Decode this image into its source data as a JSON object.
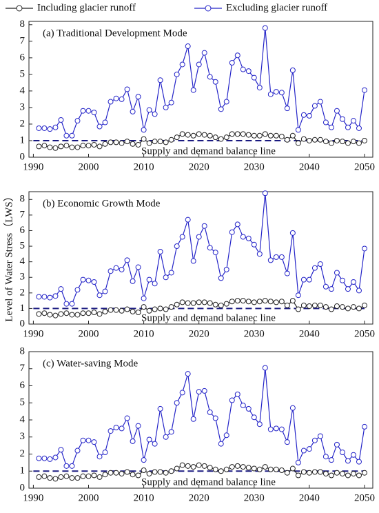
{
  "legend": [
    "Including glacier runoff",
    "Excluding glacier runoff"
  ],
  "y_label": "Level of Water Stress（LWS）",
  "chart_data": [
    {
      "type": "line",
      "title": "(a) Traditional Development Mode",
      "annotation": "Supply and demand balance line",
      "reference_line": 1,
      "x": [
        1991,
        1992,
        1993,
        1994,
        1995,
        1996,
        1997,
        1998,
        1999,
        2000,
        2001,
        2002,
        2003,
        2004,
        2005,
        2006,
        2007,
        2008,
        2009,
        2010,
        2011,
        2012,
        2013,
        2014,
        2015,
        2016,
        2017,
        2018,
        2019,
        2020,
        2021,
        2022,
        2023,
        2024,
        2025,
        2026,
        2027,
        2028,
        2029,
        2030,
        2031,
        2032,
        2033,
        2034,
        2035,
        2036,
        2037,
        2038,
        2039,
        2040,
        2041,
        2042,
        2043,
        2044,
        2045,
        2046,
        2047,
        2048,
        2049,
        2050
      ],
      "xlim": [
        1989.2,
        2051.5
      ],
      "xticks": [
        1990,
        2000,
        2010,
        2020,
        2030,
        2040,
        2050
      ],
      "ylim": [
        0,
        8.2
      ],
      "yticks": [
        0,
        1,
        2,
        3,
        4,
        5,
        6,
        7,
        8
      ],
      "series": [
        {
          "name": "Including glacier runoff",
          "color": "#222222",
          "values": [
            0.65,
            0.7,
            0.6,
            0.55,
            0.65,
            0.7,
            0.6,
            0.6,
            0.7,
            0.7,
            0.75,
            0.65,
            0.8,
            0.9,
            0.9,
            0.85,
            0.95,
            0.8,
            0.75,
            1.1,
            0.85,
            0.95,
            0.95,
            0.9,
            1.05,
            1.2,
            1.4,
            1.35,
            1.3,
            1.4,
            1.35,
            1.3,
            1.2,
            1.1,
            1.2,
            1.4,
            1.4,
            1.4,
            1.35,
            1.3,
            1.3,
            1.4,
            1.3,
            1.3,
            1.25,
            1.05,
            1.3,
            0.85,
            1.1,
            1.0,
            1.05,
            1.05,
            0.95,
            0.85,
            1.0,
            0.95,
            0.85,
            0.95,
            0.85,
            1.0
          ]
        },
        {
          "name": "Excluding glacier runoff",
          "color": "#2424c8",
          "values": [
            1.75,
            1.75,
            1.7,
            1.8,
            2.25,
            1.3,
            1.3,
            2.2,
            2.8,
            2.8,
            2.7,
            1.85,
            2.1,
            3.35,
            3.55,
            3.5,
            4.1,
            2.75,
            3.65,
            1.65,
            2.85,
            2.6,
            4.65,
            3.0,
            3.3,
            5.0,
            5.6,
            6.7,
            4.05,
            5.6,
            6.3,
            4.85,
            4.55,
            2.9,
            3.35,
            5.7,
            6.15,
            5.3,
            5.2,
            4.8,
            4.2,
            7.8,
            3.8,
            3.95,
            3.9,
            2.95,
            5.25,
            1.65,
            2.55,
            2.5,
            3.1,
            3.35,
            2.1,
            1.8,
            2.8,
            2.3,
            1.8,
            2.2,
            1.75,
            4.05
          ]
        }
      ]
    },
    {
      "type": "line",
      "title": "(b)  Economic Growth Mode",
      "annotation": "Supply and demand balanec line",
      "reference_line": 1,
      "x": [
        1991,
        1992,
        1993,
        1994,
        1995,
        1996,
        1997,
        1998,
        1999,
        2000,
        2001,
        2002,
        2003,
        2004,
        2005,
        2006,
        2007,
        2008,
        2009,
        2010,
        2011,
        2012,
        2013,
        2014,
        2015,
        2016,
        2017,
        2018,
        2019,
        2020,
        2021,
        2022,
        2023,
        2024,
        2025,
        2026,
        2027,
        2028,
        2029,
        2030,
        2031,
        2032,
        2033,
        2034,
        2035,
        2036,
        2037,
        2038,
        2039,
        2040,
        2041,
        2042,
        2043,
        2044,
        2045,
        2046,
        2047,
        2048,
        2049,
        2050
      ],
      "xlim": [
        1989.2,
        2051.5
      ],
      "xticks": [
        1990,
        2000,
        2010,
        2020,
        2030,
        2040,
        2050
      ],
      "ylim": [
        0,
        8.5
      ],
      "yticks": [
        0,
        1,
        2,
        3,
        4,
        5,
        6,
        7,
        8
      ],
      "series": [
        {
          "color": "#222222",
          "values": [
            0.65,
            0.7,
            0.6,
            0.55,
            0.65,
            0.7,
            0.6,
            0.6,
            0.7,
            0.7,
            0.75,
            0.65,
            0.8,
            0.9,
            0.9,
            0.85,
            0.95,
            0.8,
            0.75,
            1.1,
            0.85,
            0.95,
            1.0,
            0.95,
            1.1,
            1.25,
            1.4,
            1.35,
            1.35,
            1.4,
            1.4,
            1.35,
            1.25,
            1.2,
            1.3,
            1.45,
            1.5,
            1.5,
            1.45,
            1.4,
            1.45,
            1.5,
            1.45,
            1.4,
            1.45,
            1.2,
            1.5,
            0.95,
            1.2,
            1.15,
            1.2,
            1.2,
            1.1,
            0.95,
            1.15,
            1.1,
            1.0,
            1.1,
            1.0,
            1.2
          ]
        },
        {
          "color": "#2424c8",
          "values": [
            1.75,
            1.75,
            1.7,
            1.8,
            2.25,
            1.3,
            1.3,
            2.2,
            2.85,
            2.8,
            2.7,
            1.85,
            2.1,
            3.4,
            3.6,
            3.5,
            4.1,
            2.75,
            3.65,
            1.65,
            2.85,
            2.6,
            4.65,
            3.0,
            3.3,
            5.0,
            5.6,
            6.7,
            4.05,
            5.6,
            6.3,
            4.9,
            4.6,
            2.95,
            3.5,
            5.9,
            6.4,
            5.6,
            5.5,
            5.1,
            4.5,
            8.4,
            4.1,
            4.3,
            4.3,
            3.25,
            5.85,
            1.85,
            2.85,
            2.85,
            3.6,
            3.85,
            2.4,
            2.25,
            3.3,
            2.8,
            2.25,
            2.7,
            2.15,
            4.85
          ]
        }
      ]
    },
    {
      "type": "line",
      "title": "(c) Water-saving Mode",
      "annotation": "Supply and demand balance line",
      "reference_line": 1,
      "x": [
        1991,
        1992,
        1993,
        1994,
        1995,
        1996,
        1997,
        1998,
        1999,
        2000,
        2001,
        2002,
        2003,
        2004,
        2005,
        2006,
        2007,
        2008,
        2009,
        2010,
        2011,
        2012,
        2013,
        2014,
        2015,
        2016,
        2017,
        2018,
        2019,
        2020,
        2021,
        2022,
        2023,
        2024,
        2025,
        2026,
        2027,
        2028,
        2029,
        2030,
        2031,
        2032,
        2033,
        2034,
        2035,
        2036,
        2037,
        2038,
        2039,
        2040,
        2041,
        2042,
        2043,
        2044,
        2045,
        2046,
        2047,
        2048,
        2049,
        2050
      ],
      "xlim": [
        1989.2,
        2051.5
      ],
      "xticks": [
        1990,
        2000,
        2010,
        2020,
        2030,
        2040,
        2050
      ],
      "ylim": [
        0,
        8
      ],
      "yticks": [
        0,
        1,
        2,
        3,
        4,
        5,
        6,
        7,
        8
      ],
      "series": [
        {
          "color": "#222222",
          "values": [
            0.65,
            0.7,
            0.6,
            0.55,
            0.65,
            0.7,
            0.6,
            0.6,
            0.7,
            0.7,
            0.75,
            0.65,
            0.8,
            0.9,
            0.9,
            0.85,
            0.95,
            0.8,
            0.75,
            1.05,
            0.85,
            0.95,
            0.95,
            0.9,
            1.0,
            1.15,
            1.35,
            1.3,
            1.25,
            1.35,
            1.3,
            1.2,
            1.1,
            1.0,
            1.1,
            1.25,
            1.3,
            1.25,
            1.2,
            1.15,
            1.1,
            1.25,
            1.1,
            1.1,
            1.05,
            0.9,
            1.15,
            0.75,
            0.95,
            0.9,
            0.95,
            0.95,
            0.85,
            0.75,
            0.9,
            0.85,
            0.75,
            0.85,
            0.75,
            0.9
          ]
        },
        {
          "color": "#2424c8",
          "values": [
            1.75,
            1.75,
            1.7,
            1.8,
            2.25,
            1.3,
            1.3,
            2.2,
            2.8,
            2.8,
            2.7,
            1.85,
            2.1,
            3.35,
            3.55,
            3.5,
            4.1,
            2.75,
            3.65,
            1.65,
            2.85,
            2.6,
            4.65,
            3.0,
            3.3,
            5.0,
            5.6,
            6.7,
            4.05,
            5.65,
            5.7,
            4.45,
            4.1,
            2.6,
            3.1,
            5.15,
            5.5,
            4.85,
            4.65,
            4.15,
            3.75,
            7.05,
            3.45,
            3.5,
            3.45,
            2.7,
            4.7,
            1.5,
            2.2,
            2.3,
            2.8,
            3.05,
            1.85,
            1.65,
            2.55,
            2.1,
            1.6,
            1.95,
            1.55,
            3.6
          ]
        }
      ]
    }
  ]
}
